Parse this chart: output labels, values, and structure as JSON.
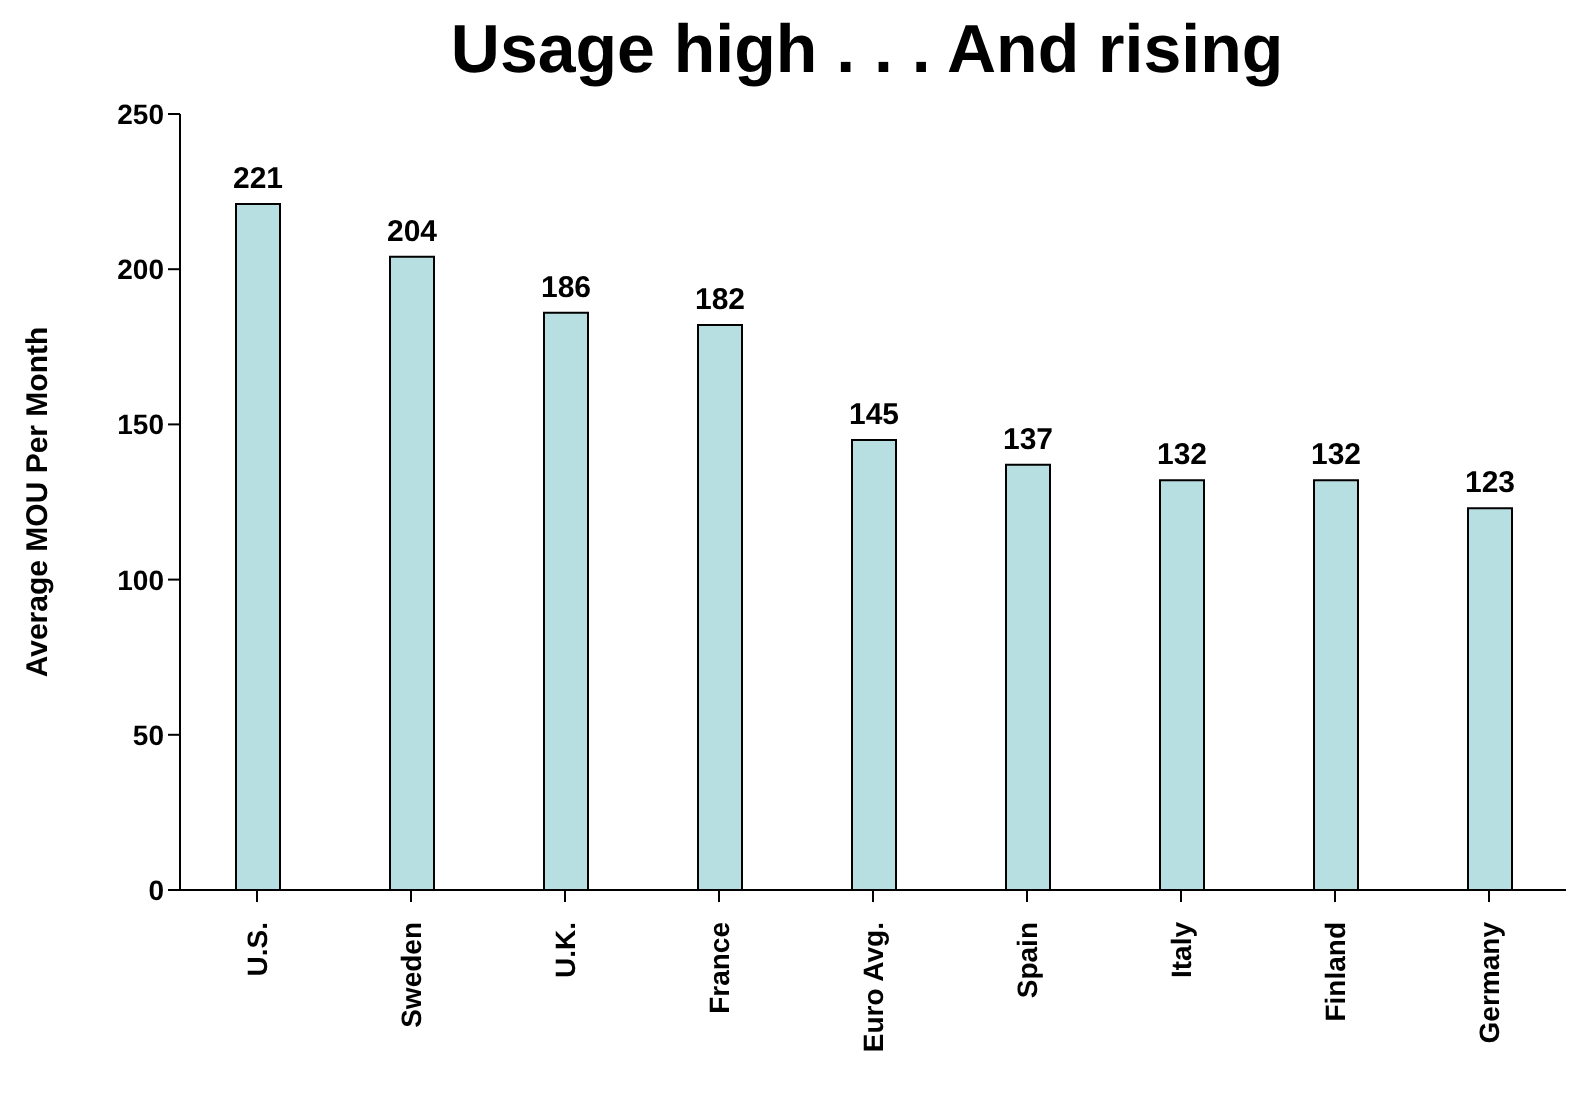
{
  "chart_data": {
    "type": "bar",
    "title": "Usage high . . . And rising",
    "ylabel": "Average MOU Per Month",
    "categories": [
      "U.S.",
      "Sweden",
      "U.K.",
      "France",
      "Euro Avg.",
      "Spain",
      "Italy",
      "Finland",
      "Germany"
    ],
    "values": [
      221,
      204,
      186,
      182,
      145,
      137,
      132,
      132,
      123
    ],
    "color": "#b7dfe2",
    "ylim": [
      0,
      250
    ],
    "yticks": [
      0,
      50,
      100,
      150,
      200,
      250
    ],
    "grid": false,
    "data_labels": true
  }
}
